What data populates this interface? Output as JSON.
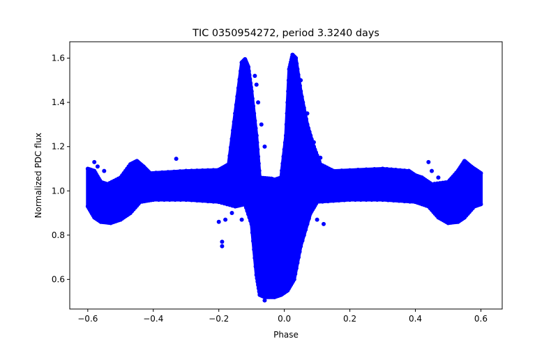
{
  "chart_data": {
    "type": "scatter",
    "title": "TIC 0350954272, period 3.3240 days",
    "xlabel": "Phase",
    "ylabel": "Normalized PDC flux",
    "xlim": [
      -0.655,
      0.665
    ],
    "ylim": [
      0.466,
      1.674
    ],
    "xticks": [
      -0.6,
      -0.4,
      -0.2,
      0.0,
      0.2,
      0.4,
      0.6
    ],
    "xtick_labels": [
      "−0.6",
      "−0.4",
      "−0.2",
      "0.0",
      "0.2",
      "0.4",
      "0.6"
    ],
    "yticks": [
      0.6,
      0.8,
      1.0,
      1.2,
      1.4,
      1.6
    ],
    "ytick_labels": [
      "0.6",
      "0.8",
      "1.0",
      "1.2",
      "1.4",
      "1.6"
    ],
    "grid": false,
    "legend": null,
    "marker_color": "#0000ff",
    "marker": "circle",
    "x_range_of_data": [
      -0.6,
      0.6
    ],
    "envelope_upper": [
      [
        -0.6,
        1.1
      ],
      [
        -0.58,
        1.09
      ],
      [
        -0.56,
        1.04
      ],
      [
        -0.54,
        1.03
      ],
      [
        -0.5,
        1.06
      ],
      [
        -0.47,
        1.12
      ],
      [
        -0.45,
        1.135
      ],
      [
        -0.43,
        1.11
      ],
      [
        -0.41,
        1.08
      ],
      [
        -0.3,
        1.09
      ],
      [
        -0.2,
        1.095
      ],
      [
        -0.17,
        1.12
      ],
      [
        -0.15,
        1.35
      ],
      [
        -0.13,
        1.58
      ],
      [
        -0.12,
        1.595
      ],
      [
        -0.11,
        1.56
      ],
      [
        -0.1,
        1.45
      ],
      [
        -0.085,
        1.25
      ],
      [
        -0.075,
        1.06
      ],
      [
        -0.04,
        1.055
      ],
      [
        -0.03,
        1.05
      ],
      [
        -0.01,
        1.06
      ],
      [
        0.005,
        1.25
      ],
      [
        0.015,
        1.55
      ],
      [
        0.025,
        1.615
      ],
      [
        0.035,
        1.6
      ],
      [
        0.05,
        1.45
      ],
      [
        0.07,
        1.3
      ],
      [
        0.09,
        1.2
      ],
      [
        0.11,
        1.12
      ],
      [
        0.15,
        1.09
      ],
      [
        0.3,
        1.1
      ],
      [
        0.38,
        1.09
      ],
      [
        0.4,
        1.07
      ],
      [
        0.42,
        1.06
      ],
      [
        0.45,
        1.03
      ],
      [
        0.5,
        1.04
      ],
      [
        0.53,
        1.09
      ],
      [
        0.55,
        1.135
      ],
      [
        0.57,
        1.11
      ],
      [
        0.6,
        1.08
      ]
    ],
    "envelope_lower": [
      [
        -0.6,
        0.93
      ],
      [
        -0.58,
        0.88
      ],
      [
        -0.56,
        0.86
      ],
      [
        -0.53,
        0.855
      ],
      [
        -0.5,
        0.87
      ],
      [
        -0.47,
        0.9
      ],
      [
        -0.44,
        0.95
      ],
      [
        -0.4,
        0.96
      ],
      [
        -0.3,
        0.96
      ],
      [
        -0.2,
        0.95
      ],
      [
        -0.15,
        0.93
      ],
      [
        -0.12,
        0.94
      ],
      [
        -0.1,
        0.85
      ],
      [
        -0.085,
        0.62
      ],
      [
        -0.075,
        0.53
      ],
      [
        -0.06,
        0.52
      ],
      [
        -0.03,
        0.52
      ],
      [
        -0.01,
        0.53
      ],
      [
        0.01,
        0.55
      ],
      [
        0.03,
        0.6
      ],
      [
        0.05,
        0.75
      ],
      [
        0.08,
        0.9
      ],
      [
        0.1,
        0.95
      ],
      [
        0.2,
        0.96
      ],
      [
        0.3,
        0.96
      ],
      [
        0.4,
        0.95
      ],
      [
        0.44,
        0.93
      ],
      [
        0.47,
        0.88
      ],
      [
        0.5,
        0.855
      ],
      [
        0.53,
        0.86
      ],
      [
        0.55,
        0.88
      ],
      [
        0.58,
        0.93
      ],
      [
        0.6,
        0.94
      ]
    ],
    "outliers": [
      [
        -0.58,
        1.13
      ],
      [
        -0.57,
        1.11
      ],
      [
        -0.55,
        1.09
      ],
      [
        -0.33,
        1.145
      ],
      [
        -0.2,
        0.86
      ],
      [
        -0.19,
        0.77
      ],
      [
        -0.19,
        0.75
      ],
      [
        -0.18,
        0.87
      ],
      [
        -0.16,
        0.9
      ],
      [
        -0.13,
        0.87
      ],
      [
        -0.09,
        1.52
      ],
      [
        -0.085,
        1.48
      ],
      [
        -0.08,
        1.4
      ],
      [
        -0.07,
        1.3
      ],
      [
        -0.06,
        1.2
      ],
      [
        0.05,
        1.5
      ],
      [
        0.07,
        1.35
      ],
      [
        0.09,
        1.22
      ],
      [
        0.11,
        1.15
      ],
      [
        0.13,
        1.1
      ],
      [
        0.1,
        0.87
      ],
      [
        0.12,
        0.85
      ],
      [
        0.44,
        1.13
      ],
      [
        0.45,
        1.09
      ],
      [
        0.47,
        1.06
      ],
      [
        -0.06,
        0.505
      ],
      [
        0.02,
        0.7
      ],
      [
        -0.04,
        0.62
      ]
    ]
  }
}
